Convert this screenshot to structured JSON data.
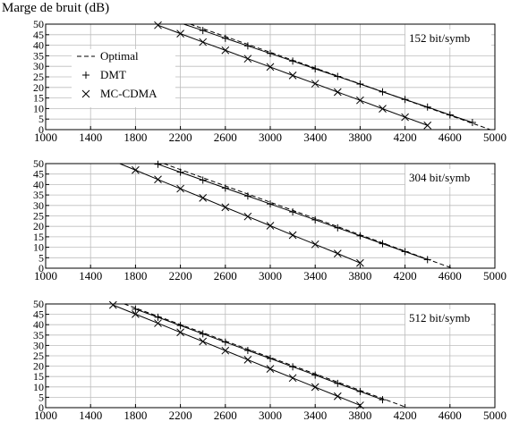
{
  "ylabel": "Marge de bruit (dB)",
  "chart_data": [
    {
      "type": "line",
      "title": "",
      "annotation": "152 bit/symb",
      "xlim": [
        1000,
        5000
      ],
      "ylim": [
        0,
        50
      ],
      "xticks": [
        1000,
        1400,
        1800,
        2200,
        2600,
        3000,
        3400,
        3800,
        4200,
        4600,
        5000
      ],
      "yticks": [
        0,
        5,
        10,
        15,
        20,
        25,
        30,
        35,
        40,
        45,
        50
      ],
      "grid": true,
      "legend": "top-left",
      "series": [
        {
          "name": "Optimal",
          "style": "dashed",
          "marker": "none",
          "x": [
            2180,
            4960
          ],
          "y": [
            52,
            0
          ]
        },
        {
          "name": "DMT",
          "style": "solid",
          "marker": "plus",
          "x": [
            2200,
            2400,
            2600,
            2800,
            3000,
            3200,
            3400,
            3600,
            3800,
            4000,
            4200,
            4400,
            4600,
            4800
          ],
          "y": [
            50.5,
            47.0,
            43.3,
            39.7,
            36.1,
            32.5,
            28.8,
            25.2,
            21.6,
            17.9,
            14.3,
            10.7,
            7.0,
            3.4
          ]
        },
        {
          "name": "MC-CDMA",
          "style": "solid",
          "marker": "cross",
          "x": [
            2000,
            2200,
            2400,
            2600,
            2800,
            3000,
            3200,
            3400,
            3600,
            3800,
            4000,
            4200,
            4400
          ],
          "y": [
            49.5,
            45.5,
            41.5,
            37.6,
            33.6,
            29.7,
            25.7,
            21.8,
            17.8,
            13.9,
            9.9,
            5.9,
            2.0
          ]
        }
      ]
    },
    {
      "type": "line",
      "title": "",
      "annotation": "304 bit/symb",
      "xlim": [
        1000,
        5000
      ],
      "ylim": [
        0,
        50
      ],
      "xticks": [
        1000,
        1400,
        1800,
        2200,
        2600,
        3000,
        3400,
        3800,
        4200,
        4600,
        5000
      ],
      "yticks": [
        0,
        5,
        10,
        15,
        20,
        25,
        30,
        35,
        40,
        45,
        50
      ],
      "grid": true,
      "legend": "none",
      "series": [
        {
          "name": "Optimal",
          "style": "dashed",
          "marker": "none",
          "x": [
            1950,
            4620
          ],
          "y": [
            52,
            0
          ]
        },
        {
          "name": "DMT",
          "style": "solid",
          "marker": "plus",
          "x": [
            2000,
            2200,
            2400,
            2600,
            2800,
            3000,
            3200,
            3400,
            3600,
            3800,
            4000,
            4200,
            4400
          ],
          "y": [
            49.7,
            45.9,
            42.1,
            38.3,
            34.5,
            30.7,
            26.9,
            23.1,
            19.3,
            15.5,
            11.7,
            7.9,
            4.1
          ]
        },
        {
          "name": "MC-CDMA",
          "style": "solid",
          "marker": "cross",
          "x": [
            1600,
            1800,
            2000,
            2200,
            2400,
            2600,
            2800,
            3000,
            3200,
            3400,
            3600,
            3800
          ],
          "y": [
            51.3,
            46.9,
            42.4,
            38.0,
            33.6,
            29.1,
            24.7,
            20.3,
            15.8,
            11.4,
            7.0,
            2.5
          ]
        }
      ]
    },
    {
      "type": "line",
      "title": "",
      "annotation": "512 bit/symb",
      "xlim": [
        1000,
        5000
      ],
      "ylim": [
        0,
        50
      ],
      "xticks": [
        1000,
        1400,
        1800,
        2200,
        2600,
        3000,
        3400,
        3800,
        4200,
        4600,
        5000
      ],
      "yticks": [
        0,
        5,
        10,
        15,
        20,
        25,
        30,
        35,
        40,
        45,
        50
      ],
      "grid": true,
      "legend": "none",
      "series": [
        {
          "name": "Optimal",
          "style": "dashed",
          "marker": "none",
          "x": [
            1700,
            4220
          ],
          "y": [
            50,
            0
          ]
        },
        {
          "name": "DMT",
          "style": "solid",
          "marker": "plus",
          "x": [
            1800,
            2000,
            2200,
            2400,
            2600,
            2800,
            3000,
            3200,
            3400,
            3600,
            3800,
            4000
          ],
          "y": [
            47.5,
            43.6,
            39.6,
            35.6,
            31.6,
            27.6,
            23.7,
            19.7,
            15.7,
            11.7,
            7.8,
            3.8
          ]
        },
        {
          "name": "MC-CDMA",
          "style": "solid",
          "marker": "cross",
          "x": [
            1600,
            1800,
            2000,
            2200,
            2400,
            2600,
            2800,
            3000,
            3200,
            3400,
            3600,
            3800
          ],
          "y": [
            49.5,
            45.1,
            40.7,
            36.3,
            31.9,
            27.5,
            23.1,
            18.7,
            14.3,
            9.9,
            5.5,
            1.1
          ]
        }
      ]
    }
  ]
}
